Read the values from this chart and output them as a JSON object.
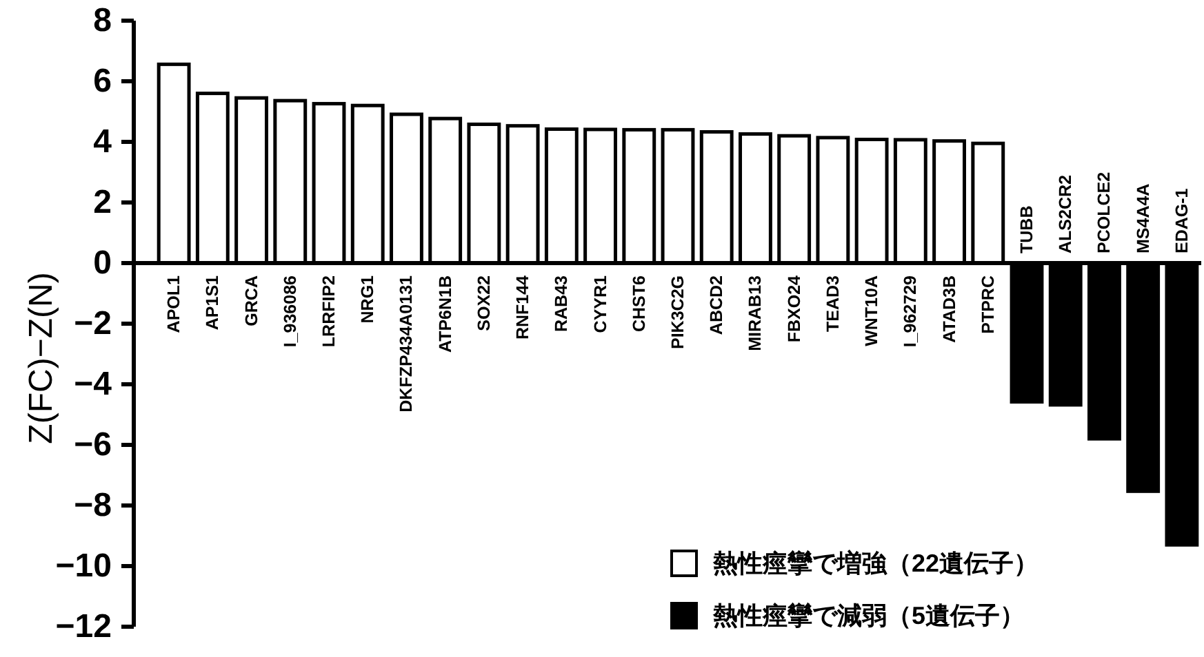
{
  "chart_data": {
    "type": "bar",
    "ylabel": "Z(FC)−Z(N)",
    "categories": [
      "APOL1",
      "AP1S1",
      "GRCA",
      "I_936086",
      "LRRFIP2",
      "NRG1",
      "DKFZP434A0131",
      "ATP6N1B",
      "SOX22",
      "RNF144",
      "RAB43",
      "CYYR1",
      "CHST6",
      "PIK3C2G",
      "ABCD2",
      "MIRAB13",
      "FBXO24",
      "TEAD3",
      "WNT10A",
      "I_962729",
      "ATAD3B",
      "PTPRC",
      "TUBB",
      "ALS2CR2",
      "PCOLCE2",
      "MS4A4A",
      "EDAG-1"
    ],
    "series": [
      {
        "name": "熱性痙攣で増強（22遺伝子）",
        "color": "#ffffff",
        "values": [
          6.56,
          5.6,
          5.45,
          5.36,
          5.26,
          5.2,
          4.91,
          4.77,
          4.58,
          4.53,
          4.42,
          4.41,
          4.4,
          4.4,
          4.33,
          4.26,
          4.2,
          4.14,
          4.08,
          4.07,
          4.03,
          3.95,
          null,
          null,
          null,
          null,
          null
        ]
      },
      {
        "name": "熱性痙攣で減弱（5遺伝子）",
        "color": "#000000",
        "values": [
          null,
          null,
          null,
          null,
          null,
          null,
          null,
          null,
          null,
          null,
          null,
          null,
          null,
          null,
          null,
          null,
          null,
          null,
          null,
          null,
          null,
          null,
          -4.58,
          -4.68,
          -5.8,
          -7.53,
          -9.3
        ]
      }
    ],
    "ylim": [
      -12,
      8
    ],
    "yticks": [
      -12,
      -10,
      -8,
      -6,
      -4,
      -2,
      0,
      2,
      4,
      6,
      8
    ],
    "legend": "bottom right"
  }
}
